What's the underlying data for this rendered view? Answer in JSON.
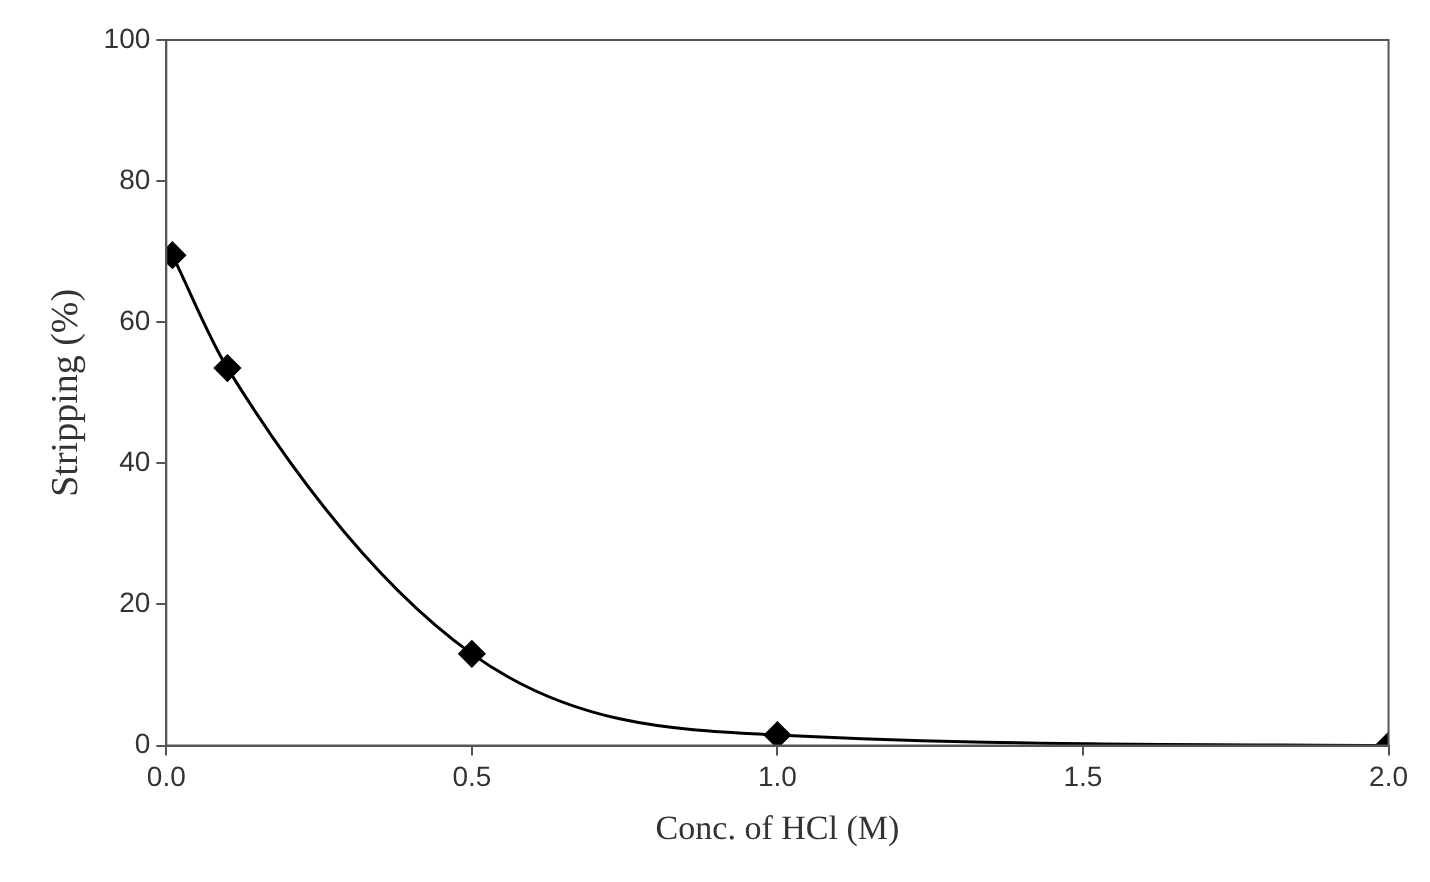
{
  "chart_data": {
    "type": "line",
    "xlabel": "Conc. of HCl (M)",
    "ylabel": "Stripping (%)",
    "x": [
      0.01,
      0.1,
      0.5,
      1.0,
      2.0
    ],
    "series": [
      {
        "color": "#000000",
        "values": [
          69.5,
          53.5,
          13,
          1.5,
          0
        ]
      }
    ],
    "xlim": [
      0,
      2.0
    ],
    "xticks": [
      {
        "value": 0,
        "label": "0.0"
      },
      {
        "value": 0.5,
        "label": "0.5"
      },
      {
        "value": 1,
        "label": "1.0"
      },
      {
        "value": 1.5,
        "label": "1.5"
      },
      {
        "value": 2,
        "label": "2.0"
      }
    ],
    "ylim": [
      0,
      100
    ],
    "yticks": [
      0,
      20,
      40,
      60,
      80,
      100
    ],
    "grid": false,
    "legend": false,
    "marker": "diamond",
    "line_style": "solid"
  }
}
